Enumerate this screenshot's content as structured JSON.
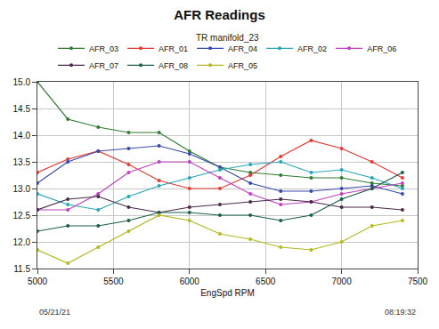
{
  "chart_data": {
    "type": "line",
    "title": "AFR Readings",
    "subtitle": "TR manifold_23",
    "x_label": "EngSpd RPM",
    "x": [
      5000,
      5200,
      5400,
      5600,
      5800,
      6000,
      6200,
      6400,
      6600,
      6800,
      7000,
      7200,
      7400
    ],
    "series": [
      {
        "name": "AFR_03",
        "color": "#2e7d32",
        "values": [
          15.0,
          14.3,
          14.15,
          14.05,
          14.05,
          13.7,
          13.4,
          13.3,
          13.25,
          13.2,
          13.2,
          13.1,
          13.05
        ]
      },
      {
        "name": "AFR_01",
        "color": "#e53935",
        "values": [
          13.3,
          13.55,
          13.7,
          13.45,
          13.15,
          13.0,
          13.0,
          13.25,
          13.6,
          13.9,
          13.75,
          13.5,
          13.2
        ]
      },
      {
        "name": "AFR_04",
        "color": "#3949ab",
        "values": [
          13.1,
          13.5,
          13.7,
          13.75,
          13.8,
          13.65,
          13.4,
          13.1,
          12.95,
          12.95,
          13.0,
          13.05,
          12.9
        ]
      },
      {
        "name": "AFR_02",
        "color": "#26a6b8",
        "values": [
          12.9,
          12.7,
          12.6,
          12.85,
          13.05,
          13.2,
          13.35,
          13.45,
          13.5,
          13.3,
          13.35,
          13.2,
          13.0
        ]
      },
      {
        "name": "AFR_06",
        "color": "#c040c0",
        "values": [
          12.6,
          12.6,
          12.9,
          13.3,
          13.5,
          13.5,
          13.2,
          12.9,
          12.7,
          12.75,
          12.9,
          13.0,
          13.1
        ]
      },
      {
        "name": "AFR_07",
        "color": "#4a2a4a",
        "values": [
          12.6,
          12.8,
          12.85,
          12.65,
          12.55,
          12.65,
          12.7,
          12.75,
          12.8,
          12.75,
          12.65,
          12.65,
          12.6
        ]
      },
      {
        "name": "AFR_08",
        "color": "#1b5e4a",
        "values": [
          12.2,
          12.3,
          12.3,
          12.4,
          12.55,
          12.55,
          12.5,
          12.5,
          12.4,
          12.5,
          12.8,
          13.0,
          13.3
        ]
      },
      {
        "name": "AFR_05",
        "color": "#b5b820",
        "values": [
          11.85,
          11.6,
          11.9,
          12.2,
          12.5,
          12.4,
          12.15,
          12.05,
          11.9,
          11.85,
          12.0,
          12.3,
          12.4
        ]
      }
    ],
    "xlim": [
      5000,
      7500
    ],
    "xticks": [
      5000,
      5500,
      6000,
      6500,
      7000,
      7500
    ],
    "ylim": [
      11.5,
      15.0
    ],
    "yticks": [
      11.5,
      {
        "value": 12,
        "label": "12.0"
      },
      12.5,
      {
        "value": 13,
        "label": "13.0"
      },
      13.5,
      {
        "value": 14,
        "label": "14.0"
      },
      14.5,
      {
        "value": 15,
        "label": "15.0"
      }
    ],
    "grid": true,
    "marker": "circle",
    "legend": "top",
    "annotations": [
      "05/21/21",
      "08:19:32"
    ]
  }
}
